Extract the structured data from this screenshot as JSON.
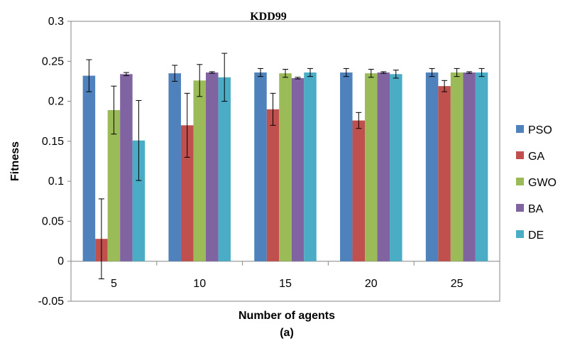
{
  "chart_data": {
    "type": "bar",
    "title": "KDD99",
    "xlabel": "Number of agents",
    "ylabel": "Fitness",
    "caption": "(a)",
    "categories": [
      "5",
      "10",
      "15",
      "20",
      "25"
    ],
    "ylim": [
      -0.05,
      0.3
    ],
    "yticks": [
      "-0.05",
      "0",
      "0.05",
      "0.1",
      "0.15",
      "0.2",
      "0.25",
      "0.3"
    ],
    "grid": false,
    "legend_position": "right",
    "series": [
      {
        "name": "PSO",
        "color": "#4f81bd",
        "values": [
          0.232,
          0.235,
          0.236,
          0.236,
          0.236
        ],
        "errors": [
          0.02,
          0.01,
          0.005,
          0.005,
          0.005
        ]
      },
      {
        "name": "GA",
        "color": "#c0504d",
        "values": [
          0.028,
          0.17,
          0.19,
          0.176,
          0.219
        ],
        "errors": [
          0.05,
          0.04,
          0.02,
          0.01,
          0.007
        ]
      },
      {
        "name": "GWO",
        "color": "#9bbb59",
        "values": [
          0.189,
          0.226,
          0.235,
          0.235,
          0.236
        ],
        "errors": [
          0.03,
          0.02,
          0.005,
          0.005,
          0.005
        ]
      },
      {
        "name": "BA",
        "color": "#8064a2",
        "values": [
          0.234,
          0.236,
          0.229,
          0.236,
          0.236
        ],
        "errors": [
          0.002,
          0.001,
          0.001,
          0.001,
          0.001
        ]
      },
      {
        "name": "DE",
        "color": "#4bacc6",
        "values": [
          0.151,
          0.23,
          0.236,
          0.234,
          0.236
        ],
        "errors": [
          0.05,
          0.03,
          0.005,
          0.005,
          0.005
        ]
      }
    ]
  }
}
